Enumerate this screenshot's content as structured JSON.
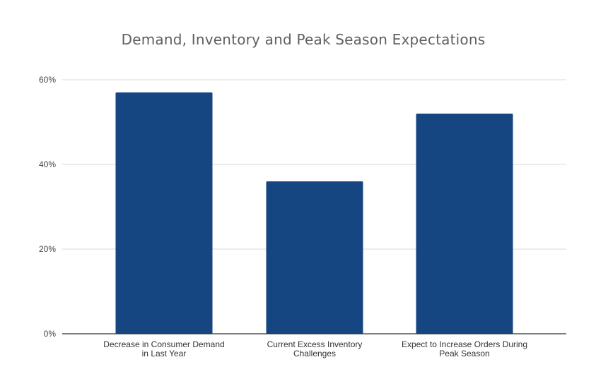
{
  "chart_data": {
    "type": "bar",
    "title": "Demand, Inventory and Peak Season Expectations",
    "categories": [
      [
        "Decrease in Consumer Demand",
        "in Last Year"
      ],
      [
        "Current Excess Inventory",
        "Challenges"
      ],
      [
        "Expect to Increase Orders During",
        "Peak Season"
      ]
    ],
    "values": [
      57,
      36,
      52
    ],
    "ylim": [
      0,
      60
    ],
    "yticks": [
      0,
      20,
      40,
      60
    ],
    "ytick_labels": [
      "0%",
      "20%",
      "40%",
      "60%"
    ],
    "xlabel": "",
    "ylabel": "",
    "grid": true,
    "legend": "none",
    "bar_color": "#164682",
    "grid_color": "#d9d9d9",
    "axis_color": "#333333"
  }
}
